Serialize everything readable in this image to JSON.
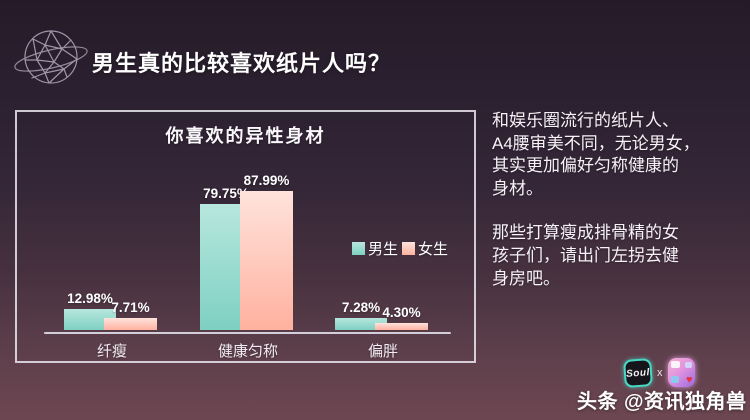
{
  "page": {
    "title": "男生真的比较喜欢纸片人吗？"
  },
  "chart_data": {
    "type": "bar",
    "title": "你喜欢的异性身材",
    "categories": [
      "纤瘦",
      "健康匀称",
      "偏胖"
    ],
    "series": [
      {
        "name": "男生",
        "values": [
          12.98,
          79.75,
          7.28
        ],
        "labels": [
          "12.98%",
          "79.75%",
          "7.28%"
        ],
        "color_top": "#b7e7de",
        "color_bottom": "#7ed0c2"
      },
      {
        "name": "女生",
        "values": [
          7.71,
          87.99,
          4.3
        ],
        "labels": [
          "7.71%",
          "87.99%",
          "4.30%"
        ],
        "color_top": "#ffe3dc",
        "color_bottom": "#ffb19f"
      }
    ],
    "ylim": [
      0,
      100
    ],
    "grid": false,
    "legend_position": "middle-right",
    "accent_colors": {
      "male": "#8fd5c9",
      "female": "#f9c2b4",
      "axis": "#d2cfdb"
    }
  },
  "commentary": {
    "para1": "和娱乐圈流行的纸片人、\nA4腰审美不同，无论男女，\n其实更加偏好匀称健康的\n身材。",
    "para2": "那些打算瘦成排骨精的女\n孩子们，请出门左拐去健\n身房吧。"
  },
  "credit": {
    "soul_label": "Soul",
    "separator": "x",
    "byline": "头条 @资讯独角兽"
  }
}
